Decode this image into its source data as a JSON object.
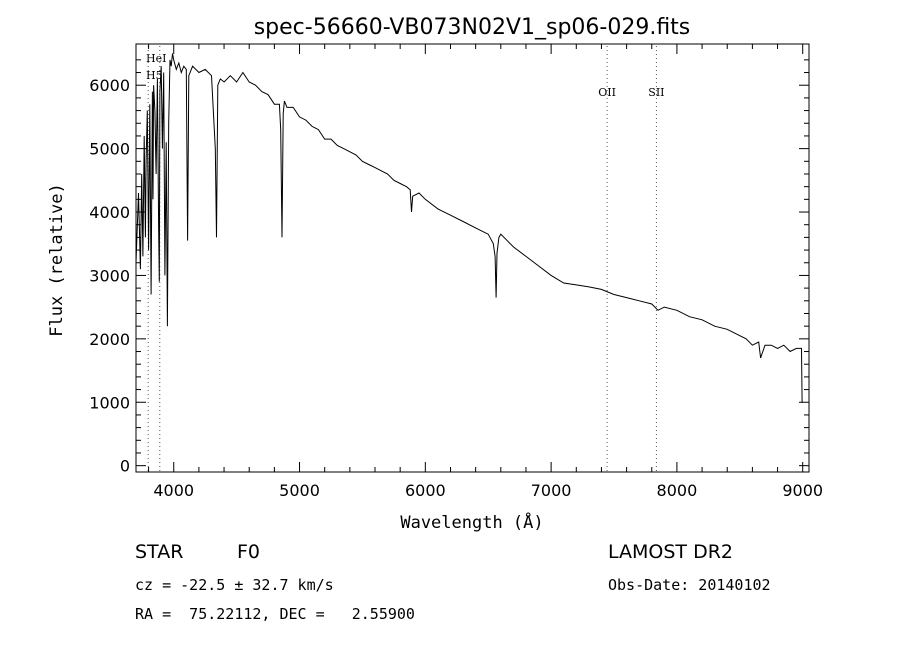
{
  "chart_data": {
    "type": "line",
    "title": "spec-56660-VB073N02V1_sp06-029.fits",
    "xlabel": "Wavelength (Å)",
    "ylabel": "Flux (relative)",
    "xlim": [
      3700,
      9050
    ],
    "ylim": [
      -100,
      6650
    ],
    "x_ticks": [
      4000,
      5000,
      6000,
      7000,
      8000,
      9000
    ],
    "y_ticks": [
      0,
      1000,
      2000,
      3000,
      4000,
      5000,
      6000
    ],
    "grid": false,
    "series": [
      {
        "x": [
          3700,
          3720,
          3735,
          3745,
          3755,
          3765,
          3775,
          3780,
          3790,
          3800,
          3810,
          3820,
          3830,
          3835,
          3840,
          3850,
          3860,
          3870,
          3880,
          3885,
          3890,
          3900,
          3910,
          3920,
          3930,
          3940,
          3950,
          3960,
          3970,
          3980,
          3990,
          4000,
          4020,
          4040,
          4060,
          4080,
          4100,
          4110,
          4120,
          4150,
          4200,
          4250,
          4300,
          4330,
          4340,
          4350,
          4370,
          4400,
          4450,
          4500,
          4550,
          4600,
          4650,
          4700,
          4750,
          4800,
          4840,
          4850,
          4861,
          4870,
          4880,
          4900,
          4950,
          5000,
          5050,
          5100,
          5150,
          5200,
          5250,
          5300,
          5350,
          5400,
          5450,
          5500,
          5550,
          5600,
          5650,
          5700,
          5750,
          5800,
          5850,
          5880,
          5890,
          5900,
          5950,
          6000,
          6100,
          6200,
          6300,
          6400,
          6500,
          6540,
          6555,
          6563,
          6570,
          6585,
          6600,
          6700,
          6800,
          6900,
          7000,
          7100,
          7200,
          7300,
          7400,
          7500,
          7600,
          7700,
          7800,
          7850,
          7900,
          8000,
          8100,
          8200,
          8300,
          8400,
          8500,
          8550,
          8600,
          8650,
          8665,
          8700,
          8750,
          8800,
          8850,
          8900,
          8950,
          8990,
          8995,
          9000
        ],
        "y": [
          3200,
          4300,
          3100,
          4600,
          3300,
          5200,
          3600,
          4800,
          5600,
          3400,
          5700,
          2700,
          5900,
          4200,
          6000,
          5600,
          4600,
          6100,
          3800,
          2900,
          5900,
          6300,
          5000,
          6200,
          3000,
          5100,
          2200,
          5400,
          6400,
          6300,
          6500,
          6400,
          6250,
          6350,
          6200,
          6300,
          6250,
          3550,
          6150,
          6300,
          6200,
          6250,
          6150,
          5000,
          3600,
          6000,
          6100,
          6050,
          6150,
          6050,
          6200,
          6050,
          6000,
          5900,
          5850,
          5700,
          5700,
          5300,
          3600,
          5550,
          5750,
          5650,
          5650,
          5500,
          5450,
          5350,
          5300,
          5150,
          5150,
          5050,
          5000,
          4950,
          4900,
          4800,
          4750,
          4700,
          4650,
          4600,
          4500,
          4450,
          4400,
          4350,
          4000,
          4250,
          4300,
          4200,
          4050,
          3950,
          3850,
          3750,
          3650,
          3500,
          3300,
          2650,
          3350,
          3600,
          3650,
          3450,
          3300,
          3150,
          3000,
          2880,
          2850,
          2820,
          2780,
          2700,
          2650,
          2600,
          2550,
          2450,
          2500,
          2450,
          2350,
          2300,
          2200,
          2150,
          2050,
          2000,
          1900,
          1950,
          1700,
          1900,
          1900,
          1850,
          1900,
          1800,
          1850,
          1850,
          1000,
          1000
        ]
      }
    ],
    "annotations": [
      {
        "label": "HeI",
        "x": 3889
      },
      {
        "label": "H5",
        "x": 3797
      },
      {
        "label": "OII",
        "x": 7445
      },
      {
        "label": "SII",
        "x": 7837
      }
    ]
  },
  "info": {
    "object_type": "STAR",
    "subclass": "F0",
    "survey": "LAMOST DR2",
    "cz": "cz = -22.5 ± 32.7 km/s",
    "obs_date": "Obs-Date: 20140102",
    "coords": "RA =  75.22112, DEC =   2.55900"
  }
}
